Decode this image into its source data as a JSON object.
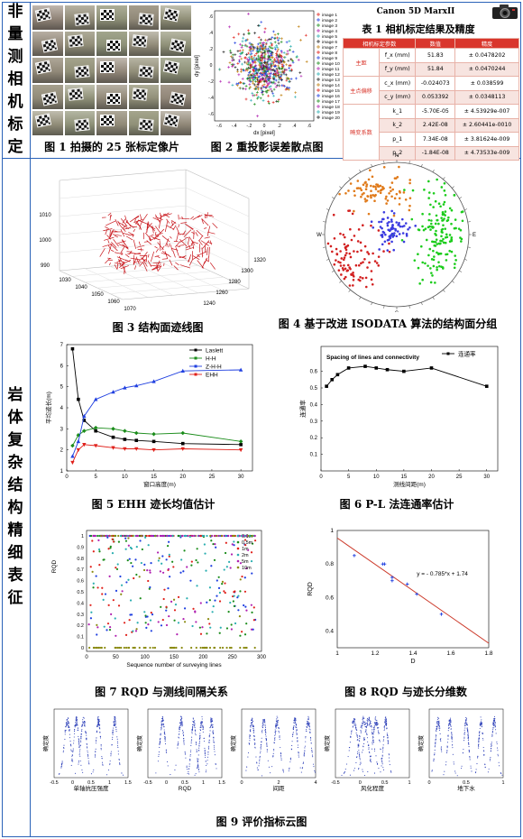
{
  "side": {
    "top": [
      "非",
      "量",
      "测",
      "相",
      "机",
      "标",
      "定"
    ],
    "bottom": [
      "岩",
      "体",
      "复",
      "杂",
      "结",
      "构",
      "精",
      "细",
      "表",
      "征"
    ]
  },
  "captions": {
    "fig1": "图 1 拍摄的 25 张标定像片",
    "fig2": "图 2 重投影误差散点图",
    "fig3": "图 3 结构面迹线图",
    "fig4": "图 4 基于改进 ISODATA 算法的结构面分组",
    "fig5": "图 5 EHH 迹长均值估计",
    "fig6": "图 6 P-L 法连通率估计",
    "fig7": "图 7 RQD 与测线间隔关系",
    "fig8": "图 8 RQD 与迹长分维数",
    "fig9": "图 9 评价指标云图"
  },
  "table": {
    "camera": "Canon 5D MarxII",
    "title": "表 1 相机标定结果及精度",
    "headers": [
      "相机标定参数",
      "数值",
      "精度"
    ],
    "rows": [
      {
        "group": "主距",
        "param": "f_x (mm)",
        "value": "51.83",
        "precision": "± 0.0478202"
      },
      {
        "group": "",
        "param": "f_y (mm)",
        "value": "51.84",
        "precision": "± 0.0470244"
      },
      {
        "group": "主点偏移",
        "param": "c_x (mm)",
        "value": "-0.024073",
        "precision": "± 0.038599"
      },
      {
        "group": "",
        "param": "c_y (mm)",
        "value": "0.053392",
        "precision": "± 0.0348113"
      },
      {
        "group": "畸变系数",
        "param": "k_1",
        "value": "-5.70E-05",
        "precision": "± 4.53929e-007"
      },
      {
        "group": "",
        "param": "k_2",
        "value": "2.42E-08",
        "precision": "± 2.60441e-0010"
      },
      {
        "group": "",
        "param": "p_1",
        "value": "7.34E-08",
        "precision": "± 3.81624e-009"
      },
      {
        "group": "",
        "param": "p_2",
        "value": "-1.84E-08",
        "precision": "± 4.73533e-009"
      }
    ]
  },
  "fig2": {
    "xlabel": "dx [pixel]",
    "ylabel": "dy [pixel]",
    "xticks": [
      "-.6",
      "-.4",
      "-.2",
      "0",
      ".2",
      ".4",
      ".6"
    ],
    "yticks": [
      ".6",
      ".4",
      ".2",
      "0",
      "-.2",
      "-.4",
      "-.6"
    ],
    "legend": [
      "image 1",
      "image 2",
      "image 3",
      "image 4",
      "image 5",
      "image 6",
      "image 7",
      "image 8",
      "image 9",
      "image 10",
      "image 11",
      "image 12",
      "image 13",
      "image 14",
      "image 15",
      "image 16",
      "image 17",
      "image 18",
      "image 19",
      "image 20"
    ]
  },
  "fig3": {
    "zticks": [
      "1010",
      "1000",
      "990"
    ],
    "xticks": [
      "1030",
      "1040",
      "1050",
      "1060",
      "1070"
    ],
    "yticks": [
      "1320",
      "1300",
      "1280",
      "1260",
      "1240"
    ]
  },
  "fig4": {
    "compass": [
      "N",
      "E",
      "S",
      "W"
    ]
  },
  "fig9": {
    "ylabel": "确定度",
    "xlabels": [
      "单轴抗压强度",
      "RQD",
      "间距",
      "风化程度",
      "地下水"
    ]
  },
  "chart_data": [
    {
      "id": "fig5",
      "type": "line",
      "xlabel": "窗口高度(m)",
      "ylabel": "平均迹长(m)",
      "x": [
        1,
        2,
        3,
        5,
        8,
        10,
        12,
        15,
        20,
        30
      ],
      "xticks": [
        0,
        5,
        10,
        15,
        20,
        25,
        30
      ],
      "yticks": [
        1,
        2,
        3,
        4,
        5,
        6,
        7
      ],
      "ylim": [
        1,
        7
      ],
      "xlim": [
        0,
        32
      ],
      "series": [
        {
          "name": "Laslett",
          "color": "#000000",
          "marker": "square",
          "values": [
            6.8,
            4.4,
            3.4,
            2.9,
            2.6,
            2.5,
            2.45,
            2.4,
            2.3,
            2.25
          ]
        },
        {
          "name": "H-H",
          "color": "#1a8c1a",
          "marker": "diamond",
          "values": [
            2.2,
            2.7,
            2.9,
            3.05,
            3.0,
            2.9,
            2.8,
            2.75,
            2.8,
            2.4
          ]
        },
        {
          "name": "Z-H-H",
          "color": "#1f3fe0",
          "marker": "triangle",
          "values": [
            1.7,
            2.4,
            3.6,
            4.4,
            4.75,
            4.95,
            5.05,
            5.25,
            5.75,
            5.8
          ]
        },
        {
          "name": "EHH",
          "color": "#e0201a",
          "marker": "tri-down",
          "values": [
            1.4,
            2.0,
            2.25,
            2.2,
            2.1,
            2.05,
            2.05,
            2.0,
            2.05,
            2.0
          ]
        }
      ]
    },
    {
      "id": "fig6",
      "type": "line",
      "title": "Spacing of lines and connectivity",
      "xlabel": "测线间距(m)",
      "ylabel": "连通率",
      "x": [
        1,
        2,
        3,
        5,
        8,
        10,
        12,
        15,
        20,
        30
      ],
      "xticks": [
        0,
        5,
        10,
        15,
        20,
        25,
        30
      ],
      "yticks": [
        0.1,
        0.2,
        0.3,
        0.4,
        0.5,
        0.6
      ],
      "ylim": [
        0.0,
        0.75
      ],
      "xlim": [
        0,
        32
      ],
      "series": [
        {
          "name": "连通率",
          "color": "#000000",
          "marker": "square",
          "values": [
            0.51,
            0.55,
            0.58,
            0.62,
            0.63,
            0.62,
            0.61,
            0.6,
            0.62,
            0.51
          ]
        }
      ]
    },
    {
      "id": "fig7",
      "type": "scatter",
      "xlabel": "Sequence number of surveying lines",
      "ylabel": "RQD",
      "xticks": [
        0,
        50,
        100,
        150,
        200,
        250,
        300
      ],
      "yticks": [
        0,
        0.1,
        0.2,
        0.3,
        0.4,
        0.5,
        0.6,
        0.7,
        0.8,
        0.9,
        1
      ],
      "xlim": [
        0,
        300
      ],
      "ylim": [
        0,
        1
      ],
      "series": [
        {
          "name": "0.1m",
          "color": "#1f3fe0"
        },
        {
          "name": "0.5m",
          "color": "#1a8c1a"
        },
        {
          "name": "1m",
          "color": "#e0201a"
        },
        {
          "name": "2m",
          "color": "#2aaeb0"
        },
        {
          "name": "5m",
          "color": "#b020b0"
        },
        {
          "name": "10m",
          "color": "#8a8a10"
        }
      ]
    },
    {
      "id": "fig8",
      "type": "scatter",
      "xlabel": "D",
      "ylabel": "RQD",
      "xticks": [
        1,
        1.2,
        1.4,
        1.6,
        1.8
      ],
      "yticks": [
        0.4,
        0.6,
        0.8,
        1
      ],
      "xlim": [
        1,
        1.8
      ],
      "ylim": [
        0.3,
        1.0
      ],
      "equation": "y = - 0.785*x + 1.74",
      "points": [
        [
          1.09,
          0.85
        ],
        [
          1.24,
          0.8
        ],
        [
          1.25,
          0.8
        ],
        [
          1.29,
          0.72
        ],
        [
          1.29,
          0.7
        ],
        [
          1.37,
          0.68
        ],
        [
          1.42,
          0.62
        ],
        [
          1.55,
          0.5
        ]
      ],
      "fit": {
        "slope": -0.785,
        "intercept": 1.74
      }
    }
  ]
}
